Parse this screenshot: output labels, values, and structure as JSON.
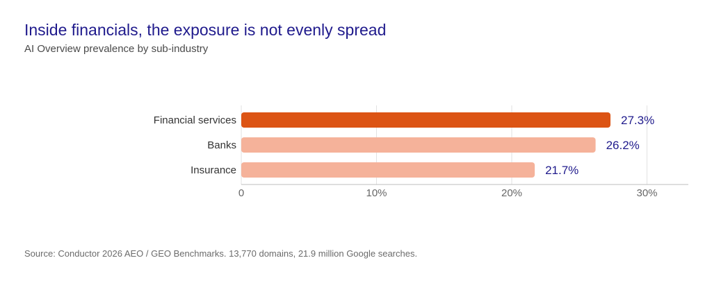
{
  "header": {
    "title": "Inside financials, the exposure is not evenly spread",
    "subtitle": "AI Overview prevalence by sub-industry"
  },
  "footer": {
    "source": "Source: Conductor 2026 AEO / GEO Benchmarks. 13,770 domains, 21.9 million Google searches."
  },
  "colors": {
    "highlight": "#dc5414",
    "bar": "#f5b29a",
    "value_label": "#1f1a8c",
    "category_label": "#333333",
    "tick_label": "#666666",
    "grid": "#e2e2e2",
    "axis": "#bdbdbd"
  },
  "chart_data": {
    "type": "bar",
    "orientation": "horizontal",
    "categories": [
      "Financial services",
      "Banks",
      "Insurance"
    ],
    "values": [
      27.3,
      26.2,
      21.7
    ],
    "value_labels": [
      "27.3%",
      "26.2%",
      "21.7%"
    ],
    "highlighted_category": "Financial services",
    "xlim": [
      0,
      33
    ],
    "x_ticks": [
      0,
      10,
      20,
      30
    ],
    "x_tick_labels": [
      "0",
      "10%",
      "20%",
      "30%"
    ],
    "grid": true,
    "legend": "none"
  }
}
